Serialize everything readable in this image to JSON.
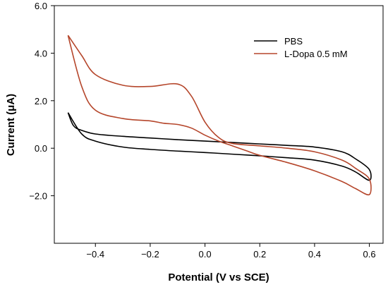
{
  "chart_data": {
    "type": "line",
    "title": "",
    "xlabel": "Potential (V vs SCE)",
    "ylabel": "Current (μA)",
    "xlim": [
      -0.55,
      0.65
    ],
    "ylim": [
      -4.0,
      6.0
    ],
    "xticks": [
      -0.4,
      -0.2,
      0.0,
      0.2,
      0.4,
      0.6
    ],
    "xtick_labels": [
      "−0.4",
      "−0.2",
      "0.0",
      "0.2",
      "0.4",
      "0.6"
    ],
    "yticks": [
      -2.0,
      0.0,
      2.0,
      4.0,
      6.0
    ],
    "ytick_labels": [
      "−2.0",
      "0.0",
      "2.0",
      "4.0",
      "6.0"
    ],
    "grid": false,
    "legend_position": "top-right",
    "series": [
      {
        "name": "PBS",
        "color": "#000000",
        "x": [
          -0.5,
          -0.45,
          -0.4,
          -0.3,
          -0.2,
          -0.1,
          0.0,
          0.1,
          0.2,
          0.3,
          0.4,
          0.5,
          0.55,
          0.6,
          0.6,
          0.55,
          0.5,
          0.4,
          0.3,
          0.2,
          0.1,
          0.0,
          -0.1,
          -0.2,
          -0.3,
          -0.4,
          -0.45,
          -0.48,
          -0.5
        ],
        "y": [
          1.5,
          0.6,
          0.3,
          0.05,
          -0.05,
          -0.12,
          -0.18,
          -0.25,
          -0.32,
          -0.4,
          -0.5,
          -0.75,
          -1.0,
          -1.35,
          -0.9,
          -0.45,
          -0.15,
          0.05,
          0.12,
          0.18,
          0.24,
          0.3,
          0.36,
          0.43,
          0.5,
          0.6,
          0.75,
          0.95,
          1.5
        ]
      },
      {
        "name": "L-Dopa 0.5 mM",
        "color": "#b5462b",
        "x": [
          -0.5,
          -0.45,
          -0.4,
          -0.3,
          -0.2,
          -0.1,
          -0.05,
          0.0,
          0.05,
          0.1,
          0.2,
          0.3,
          0.4,
          0.5,
          0.55,
          0.6,
          0.6,
          0.55,
          0.5,
          0.4,
          0.3,
          0.2,
          0.15,
          0.1,
          0.05,
          0.0,
          -0.05,
          -0.1,
          -0.15,
          -0.2,
          -0.3,
          -0.4,
          -0.45,
          -0.5
        ],
        "y": [
          4.75,
          3.9,
          3.1,
          2.65,
          2.6,
          2.7,
          2.2,
          1.1,
          0.45,
          0.2,
          0.1,
          0.0,
          -0.15,
          -0.5,
          -0.85,
          -1.3,
          -1.95,
          -1.7,
          -1.4,
          -0.95,
          -0.6,
          -0.3,
          -0.1,
          0.1,
          0.3,
          0.55,
          0.85,
          1.0,
          1.05,
          1.15,
          1.25,
          1.6,
          2.6,
          4.75
        ]
      }
    ]
  }
}
